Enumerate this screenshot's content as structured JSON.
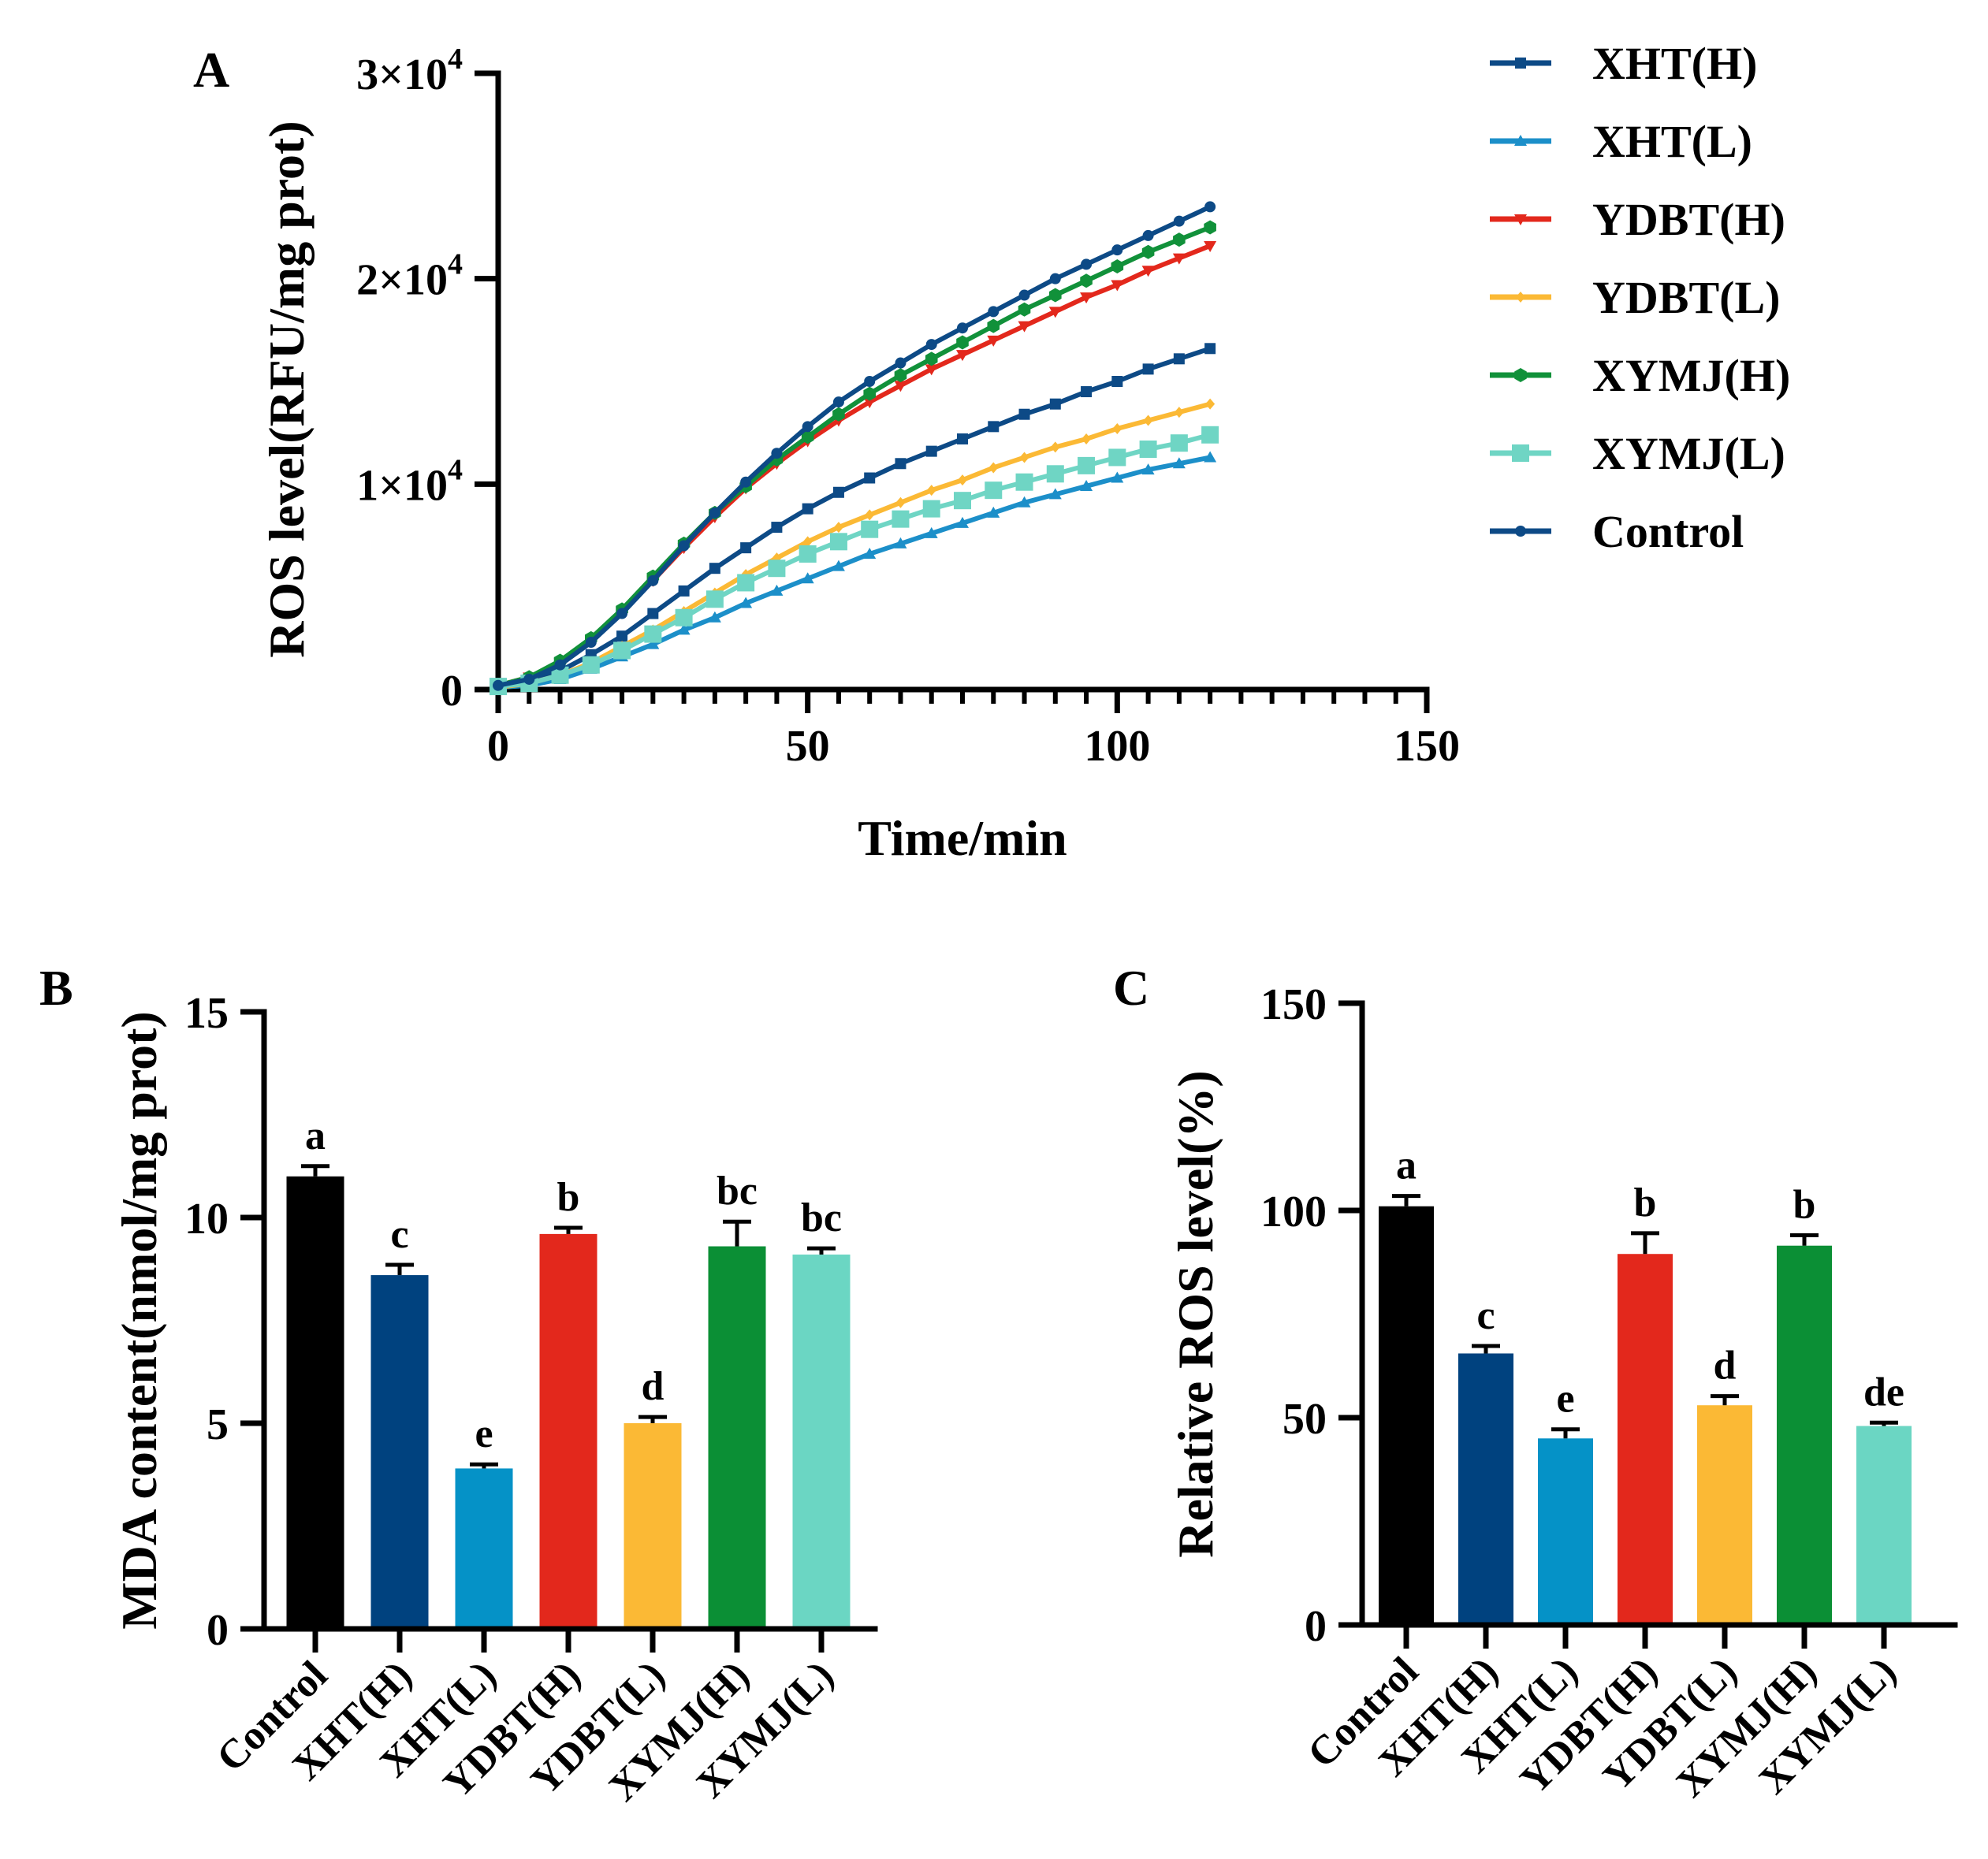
{
  "colors": {
    "Control": "#0d4a86",
    "XHT(H)": "#0d4a86",
    "XHT(L)": "#1c8fc9",
    "YDBT(H)": "#e3281c",
    "YDBT(L)": "#fbb935",
    "XYMJ(H)": "#11913a",
    "XYMJ(L)": "#6fd5c4",
    "ControlBar": "#000000",
    "XHT(H)Bar": "#004080"
  },
  "chart_data": [
    {
      "id": "A",
      "panel_label": "A",
      "type": "line",
      "title": "",
      "xlabel": "Time/min",
      "ylabel": "ROS level(RFU/mg prot)",
      "xlim": [
        0,
        150
      ],
      "ylim": [
        0,
        30000
      ],
      "x_ticks": [
        {
          "value": 0,
          "label": "0"
        },
        {
          "value": 50,
          "label": "50"
        },
        {
          "value": 100,
          "label": "100"
        },
        {
          "value": 150,
          "label": "150"
        }
      ],
      "y_ticks": [
        {
          "value": 0,
          "label": "0",
          "base": "",
          "exp": ""
        },
        {
          "value": 10000,
          "label": "",
          "base": "1×10",
          "exp": "4"
        },
        {
          "value": 20000,
          "label": "",
          "base": "2×10",
          "exp": "4"
        },
        {
          "value": 30000,
          "label": "",
          "base": "3×10",
          "exp": "4"
        }
      ],
      "legend_position": "top-right",
      "x": [
        0,
        5,
        10,
        15,
        20,
        25,
        30,
        35,
        40,
        45,
        50,
        55,
        60,
        65,
        70,
        75,
        80,
        85,
        90,
        95,
        100,
        105,
        110,
        115
      ],
      "series": [
        {
          "name": "XHT(H)",
          "marker": "square",
          "values": [
            200,
            400,
            900,
            1700,
            2600,
            3700,
            4800,
            5900,
            6900,
            7900,
            8800,
            9600,
            10300,
            11000,
            11600,
            12200,
            12800,
            13400,
            13900,
            14500,
            15000,
            15600,
            16100,
            16600
          ]
        },
        {
          "name": "XHT(L)",
          "marker": "triangle",
          "values": [
            100,
            200,
            500,
            1000,
            1600,
            2200,
            2900,
            3500,
            4200,
            4800,
            5400,
            6000,
            6600,
            7100,
            7600,
            8100,
            8600,
            9100,
            9500,
            9900,
            10300,
            10700,
            11000,
            11300
          ]
        },
        {
          "name": "YDBT(H)",
          "marker": "triangle-down",
          "values": [
            200,
            600,
            1300,
            2400,
            3800,
            5300,
            6900,
            8400,
            9800,
            11000,
            12100,
            13100,
            14000,
            14800,
            15600,
            16300,
            17000,
            17700,
            18400,
            19100,
            19700,
            20400,
            21000,
            21600
          ]
        },
        {
          "name": "YDBT(L)",
          "marker": "diamond",
          "values": [
            100,
            300,
            700,
            1300,
            2100,
            2900,
            3800,
            4700,
            5600,
            6400,
            7200,
            7900,
            8500,
            9100,
            9700,
            10200,
            10800,
            11300,
            11800,
            12200,
            12700,
            13100,
            13500,
            13900
          ]
        },
        {
          "name": "XYMJ(H)",
          "marker": "hexagon",
          "values": [
            200,
            600,
            1400,
            2500,
            3900,
            5500,
            7100,
            8600,
            9900,
            11200,
            12300,
            13400,
            14400,
            15300,
            16100,
            16900,
            17700,
            18500,
            19200,
            19900,
            20600,
            21300,
            21900,
            22500
          ]
        },
        {
          "name": "XYMJ(L)",
          "marker": "big-square",
          "values": [
            150,
            300,
            700,
            1200,
            1900,
            2700,
            3500,
            4400,
            5200,
            5900,
            6600,
            7200,
            7800,
            8300,
            8800,
            9200,
            9700,
            10100,
            10500,
            10900,
            11300,
            11700,
            12000,
            12400
          ]
        },
        {
          "name": "Control",
          "marker": "circle",
          "values": [
            200,
            500,
            1200,
            2300,
            3700,
            5300,
            7000,
            8600,
            10100,
            11500,
            12800,
            14000,
            15000,
            15900,
            16800,
            17600,
            18400,
            19200,
            20000,
            20700,
            21400,
            22100,
            22800,
            23500
          ]
        }
      ]
    },
    {
      "id": "B",
      "panel_label": "B",
      "type": "bar",
      "title": "",
      "xlabel": "",
      "ylabel": "MDA content(nmol/mg prot)",
      "ylim": [
        0,
        15
      ],
      "y_ticks": [
        {
          "value": 0,
          "label": "0"
        },
        {
          "value": 5,
          "label": "5"
        },
        {
          "value": 10,
          "label": "10"
        },
        {
          "value": 15,
          "label": "15"
        }
      ],
      "categories": [
        "Control",
        "XHT(H)",
        "XHT(L)",
        "YDBT(H)",
        "YDBT(L)",
        "XYMJ(H)",
        "XYMJ(L)"
      ],
      "values": [
        11.0,
        8.6,
        3.9,
        9.6,
        5.0,
        9.3,
        9.1
      ],
      "errors": [
        0.25,
        0.25,
        0.1,
        0.15,
        0.15,
        0.6,
        0.15
      ],
      "significance": [
        "a",
        "c",
        "e",
        "b",
        "d",
        "bc",
        "bc"
      ]
    },
    {
      "id": "C",
      "panel_label": "C",
      "type": "bar",
      "title": "",
      "xlabel": "",
      "ylabel": "Relative ROS level(%)",
      "ylim": [
        0,
        150
      ],
      "y_ticks": [
        {
          "value": 0,
          "label": "0"
        },
        {
          "value": 50,
          "label": "50"
        },
        {
          "value": 100,
          "label": "100"
        },
        {
          "value": 150,
          "label": "150"
        }
      ],
      "categories": [
        "Control",
        "XHT(H)",
        "XHT(L)",
        "YDBT(H)",
        "YDBT(L)",
        "XYMJ(H)",
        "XYMJ(L)"
      ],
      "values": [
        101,
        65.5,
        45,
        89.5,
        53,
        91.5,
        48
      ],
      "errors": [
        2.5,
        1.8,
        2.2,
        5.0,
        2.2,
        2.5,
        0.8
      ],
      "significance": [
        "a",
        "c",
        "e",
        "b",
        "d",
        "b",
        "de"
      ]
    }
  ]
}
